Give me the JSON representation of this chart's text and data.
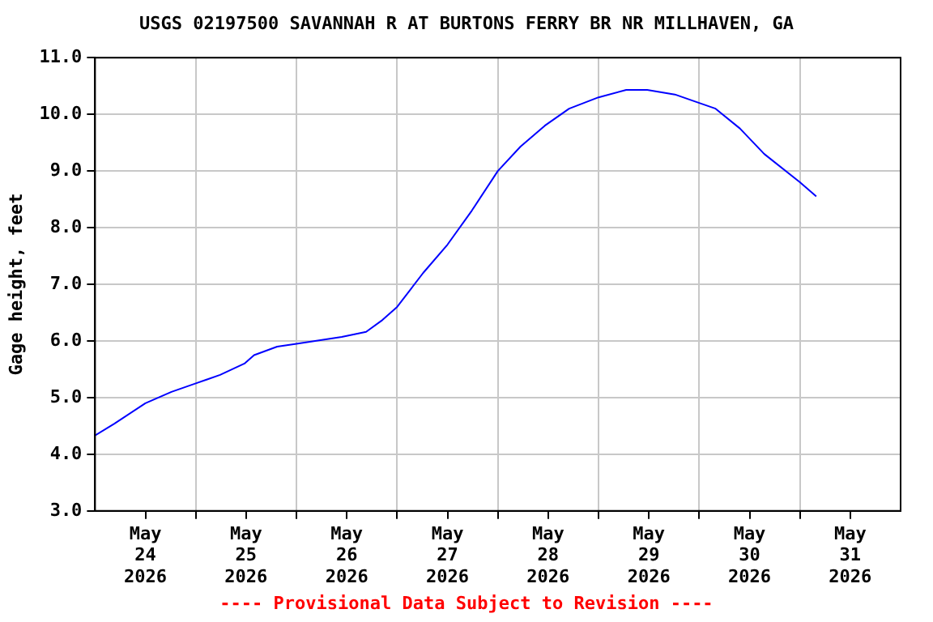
{
  "chart_data": {
    "type": "line",
    "title": "USGS 02197500 SAVANNAH R AT BURTONS FERRY BR NR MILLHAVEN, GA",
    "ylabel": "Gage height, feet",
    "annotations": [
      "---- Provisional Data Subject to Revision ----"
    ],
    "x": [
      "2026-05-24T00:00",
      "2026-05-24T04:36",
      "2026-05-24T12:00",
      "2026-05-24T18:12",
      "2026-05-25T00:00",
      "2026-05-25T05:48",
      "2026-05-25T11:36",
      "2026-05-25T13:54",
      "2026-05-25T19:24",
      "2026-05-26T00:00",
      "2026-05-26T10:48",
      "2026-05-26T16:36",
      "2026-05-26T20:30",
      "2026-05-27T00:00",
      "2026-05-27T06:12",
      "2026-05-27T12:00",
      "2026-05-27T17:48",
      "2026-05-28T00:00",
      "2026-05-28T05:24",
      "2026-05-28T11:12",
      "2026-05-28T17:00",
      "2026-05-29T00:00",
      "2026-05-29T06:36",
      "2026-05-29T11:36",
      "2026-05-29T18:12",
      "2026-05-30T00:00",
      "2026-05-30T03:54",
      "2026-05-30T09:42",
      "2026-05-30T15:30",
      "2026-05-31T00:00",
      "2026-05-31T03:54"
    ],
    "series": [
      {
        "color": "#0000ff",
        "values": [
          4.33,
          4.54,
          4.9,
          5.1,
          5.25,
          5.4,
          5.6,
          5.75,
          5.9,
          5.95,
          6.07,
          6.16,
          6.37,
          6.6,
          7.2,
          7.7,
          8.3,
          9.0,
          9.43,
          9.8,
          10.1,
          10.3,
          10.43,
          10.43,
          10.35,
          10.2,
          10.1,
          9.75,
          9.3,
          8.8,
          8.55
        ]
      }
    ],
    "xlim": [
      "2026-05-24T00:00",
      "2026-06-01T00:00"
    ],
    "xticks": [
      {
        "value": "2026-05-24T12:00",
        "label": "May\n24\n2026"
      },
      {
        "value": "2026-05-25T00:00",
        "label": null
      },
      {
        "value": "2026-05-25T12:00",
        "label": "May\n25\n2026"
      },
      {
        "value": "2026-05-26T00:00",
        "label": null
      },
      {
        "value": "2026-05-26T12:00",
        "label": "May\n26\n2026"
      },
      {
        "value": "2026-05-27T00:00",
        "label": null
      },
      {
        "value": "2026-05-27T12:00",
        "label": "May\n27\n2026"
      },
      {
        "value": "2026-05-28T00:00",
        "label": null
      },
      {
        "value": "2026-05-28T12:00",
        "label": "May\n28\n2026"
      },
      {
        "value": "2026-05-29T00:00",
        "label": null
      },
      {
        "value": "2026-05-29T12:00",
        "label": "May\n29\n2026"
      },
      {
        "value": "2026-05-30T00:00",
        "label": null
      },
      {
        "value": "2026-05-30T12:00",
        "label": "May\n30\n2026"
      },
      {
        "value": "2026-05-31T00:00",
        "label": null
      },
      {
        "value": "2026-05-31T12:00",
        "label": "May\n31\n2026"
      }
    ],
    "ylim": [
      3,
      11
    ],
    "yticks": [
      {
        "value": 3,
        "label": "3.0"
      },
      {
        "value": 4,
        "label": "4.0"
      },
      {
        "value": 5,
        "label": "5.0"
      },
      {
        "value": 6,
        "label": "6.0"
      },
      {
        "value": 7,
        "label": "7.0"
      },
      {
        "value": 8,
        "label": "8.0"
      },
      {
        "value": 9,
        "label": "9.0"
      },
      {
        "value": 10,
        "label": "10.0"
      },
      {
        "value": 11,
        "label": "11.0"
      }
    ],
    "grid": true,
    "legend": false,
    "marker": "none",
    "line_style": "solid"
  }
}
